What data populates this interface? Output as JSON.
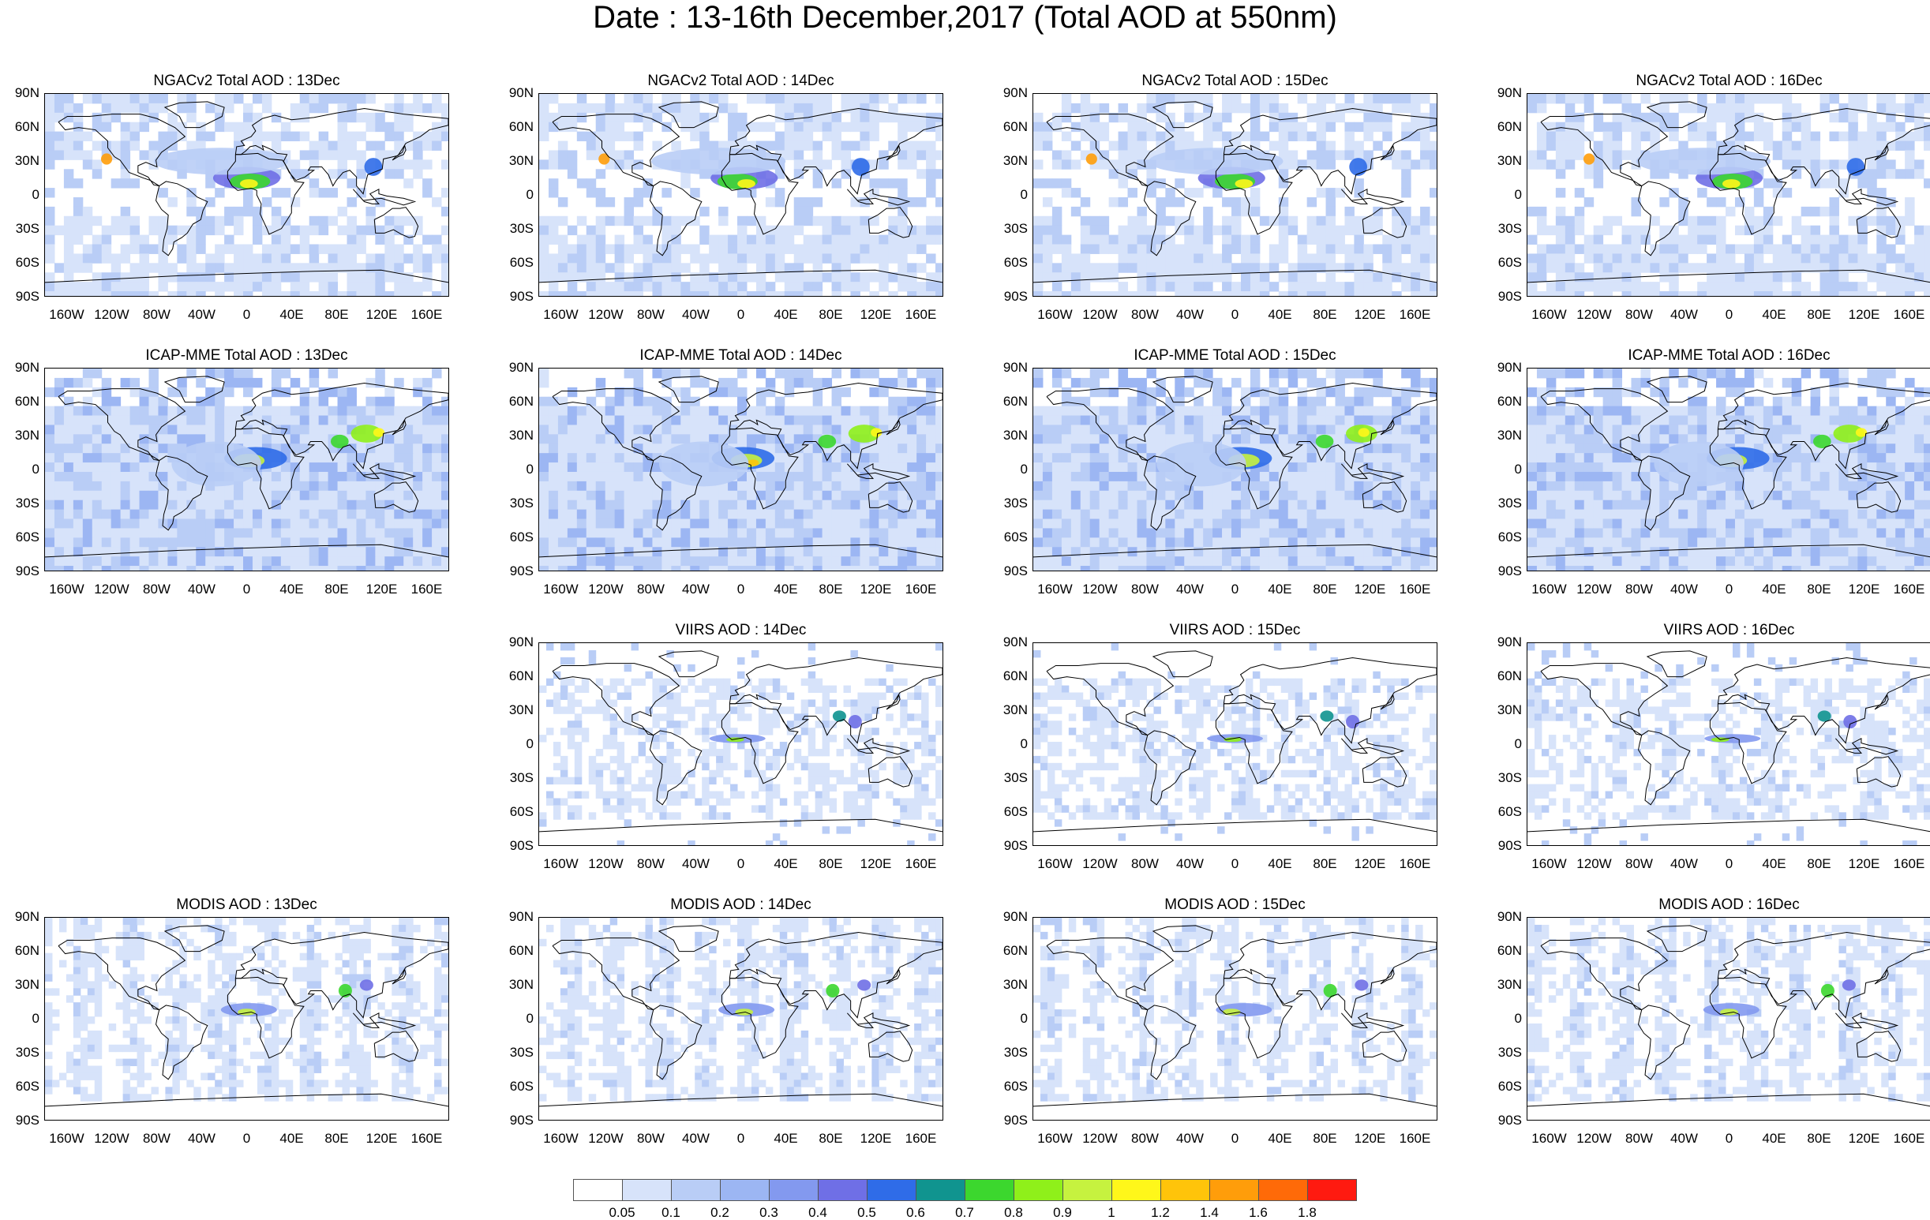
{
  "title": "Date : 13-16th December,2017 (Total AOD at 550nm)",
  "lat_labels": [
    "90N",
    "60N",
    "30N",
    "0",
    "30S",
    "60S",
    "90S"
  ],
  "lon_labels": [
    "160W",
    "120W",
    "80W",
    "40W",
    "0",
    "40E",
    "80E",
    "120E",
    "160E"
  ],
  "panels": [
    {
      "row": 0,
      "col": 0,
      "title": "NGACv2 Total AOD : 13Dec",
      "kind": "model"
    },
    {
      "row": 0,
      "col": 1,
      "title": "NGACv2 Total AOD : 14Dec",
      "kind": "model"
    },
    {
      "row": 0,
      "col": 2,
      "title": "NGACv2 Total AOD : 15Dec",
      "kind": "model"
    },
    {
      "row": 0,
      "col": 3,
      "title": "NGACv2 Total AOD : 16Dec",
      "kind": "model"
    },
    {
      "row": 1,
      "col": 0,
      "title": "ICAP-MME Total AOD : 13Dec",
      "kind": "ensemble"
    },
    {
      "row": 1,
      "col": 1,
      "title": "ICAP-MME Total AOD : 14Dec",
      "kind": "ensemble"
    },
    {
      "row": 1,
      "col": 2,
      "title": "ICAP-MME Total AOD : 15Dec",
      "kind": "ensemble"
    },
    {
      "row": 1,
      "col": 3,
      "title": "ICAP-MME Total AOD : 16Dec",
      "kind": "ensemble"
    },
    {
      "row": 2,
      "col": 1,
      "title": "VIIRS AOD : 14Dec",
      "kind": "satellite"
    },
    {
      "row": 2,
      "col": 2,
      "title": "VIIRS AOD : 15Dec",
      "kind": "satellite"
    },
    {
      "row": 2,
      "col": 3,
      "title": "VIIRS AOD : 16Dec",
      "kind": "satellite"
    },
    {
      "row": 3,
      "col": 0,
      "title": "MODIS AOD : 13Dec",
      "kind": "swath"
    },
    {
      "row": 3,
      "col": 1,
      "title": "MODIS AOD : 14Dec",
      "kind": "swath"
    },
    {
      "row": 3,
      "col": 2,
      "title": "MODIS AOD : 15Dec",
      "kind": "swath"
    },
    {
      "row": 3,
      "col": 3,
      "title": "MODIS AOD : 16Dec",
      "kind": "swath"
    }
  ],
  "colorbar": {
    "labels": [
      "0.05",
      "0.1",
      "0.2",
      "0.3",
      "0.4",
      "0.5",
      "0.6",
      "0.7",
      "0.8",
      "0.9",
      "1",
      "1.2",
      "1.4",
      "1.6",
      "1.8"
    ],
    "colors": [
      "#ffffff",
      "#d7e3fa",
      "#b9cdf6",
      "#9cb6f3",
      "#8399ef",
      "#6f6fe6",
      "#2f6ce8",
      "#10948f",
      "#3cd72e",
      "#8ff01a",
      "#c6f23f",
      "#fff71a",
      "#ffc40a",
      "#ff9d0a",
      "#ff6a08",
      "#ff1a10"
    ]
  }
}
